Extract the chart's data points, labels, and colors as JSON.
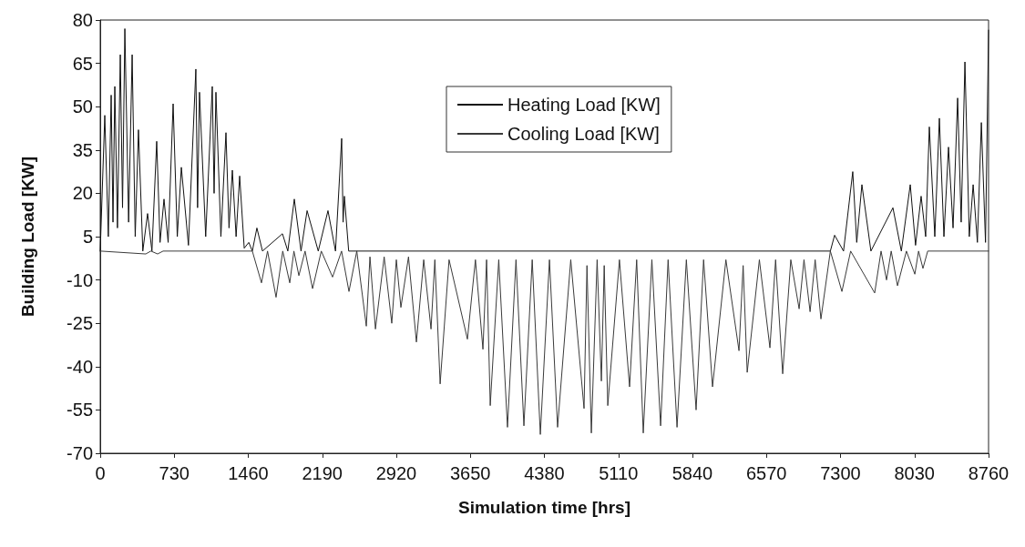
{
  "chart_data": {
    "type": "line",
    "xlabel": "Simulation time [hrs]",
    "ylabel": "Building Load [KW]",
    "xlim": [
      0,
      8760
    ],
    "xticks": [
      0,
      730,
      1460,
      2190,
      2920,
      3650,
      4380,
      5110,
      5840,
      6570,
      7300,
      8030,
      8760
    ],
    "ylim": [
      -70,
      80
    ],
    "yticks": [
      -70,
      -55,
      -40,
      -25,
      -10,
      5,
      20,
      35,
      50,
      65,
      80
    ],
    "grid": false,
    "legend": "top",
    "marker": "none",
    "line_style": "solid",
    "series": [
      {
        "name": "Heating Load [KW]",
        "color": "#111111",
        "x": [
          0,
          45,
          80,
          108,
          126,
          144,
          170,
          198,
          220,
          243,
          280,
          315,
          345,
          377,
          420,
          467,
          510,
          557,
          590,
          629,
          670,
          719,
          760,
          800,
          870,
          943,
          960,
          979,
          1040,
          1105,
          1123,
          1141,
          1190,
          1240,
          1270,
          1303,
          1340,
          1375,
          1420,
          1465,
          1500,
          1545,
          1600,
          1797,
          1850,
          1914,
          1980,
          2040,
          2150,
          2246,
          2320,
          2381,
          2395,
          2408,
          2450,
          7200,
          7242,
          7330,
          7421,
          7460,
          7511,
          7600,
          7817,
          7900,
          7988,
          8040,
          8095,
          8140,
          8176,
          8230,
          8275,
          8320,
          8365,
          8410,
          8455,
          8490,
          8527,
          8570,
          8608,
          8650,
          8689,
          8730,
          8760
        ],
        "values": [
          0,
          47,
          5,
          54,
          10,
          57,
          8,
          68,
          15,
          77,
          10,
          68,
          5,
          42,
          0,
          13,
          0,
          38,
          3,
          18,
          3,
          51,
          5,
          29,
          2,
          63,
          15,
          55,
          5,
          57,
          20,
          55,
          5,
          41,
          8,
          28,
          5,
          26,
          1,
          3,
          0,
          8,
          0,
          6,
          0,
          18,
          0,
          14,
          0,
          14,
          0,
          39,
          10,
          19,
          0,
          0,
          5.5,
          0,
          27.5,
          3,
          23,
          0,
          15,
          0,
          23,
          2,
          19,
          5,
          43,
          5,
          46,
          5,
          36,
          8,
          53,
          10,
          65.5,
          5,
          23,
          3,
          44.5,
          3,
          76.5
        ]
      },
      {
        "name": "Cooling Load [KW]",
        "color": "#3a3a3a",
        "x": [
          0,
          449,
          500,
          566,
          620,
          1500,
          1590,
          1650,
          1734,
          1800,
          1869,
          1910,
          1959,
          2020,
          2094,
          2180,
          2291,
          2380,
          2453,
          2530,
          2624,
          2660,
          2714,
          2800,
          2875,
          2920,
          2965,
          3040,
          3118,
          3190,
          3262,
          3300,
          3352,
          3440,
          3621,
          3700,
          3774,
          3810,
          3846,
          3930,
          4016,
          4100,
          4178,
          4260,
          4340,
          4430,
          4510,
          4640,
          4771,
          4800,
          4843,
          4900,
          4942,
          4970,
          5005,
          5120,
          5220,
          5290,
          5355,
          5440,
          5526,
          5600,
          5688,
          5780,
          5876,
          5950,
          6038,
          6170,
          6299,
          6340,
          6380,
          6500,
          6604,
          6660,
          6730,
          6810,
          6892,
          6940,
          7000,
          7050,
          7107,
          7200,
          7314,
          7400,
          7637,
          7700,
          7754,
          7800,
          7862,
          7950,
          8033,
          8070,
          8113,
          8160,
          8760
        ],
        "values": [
          0,
          -1,
          0,
          -1,
          0,
          0,
          -11,
          0,
          -16,
          0,
          -11,
          0,
          -8.5,
          0,
          -13,
          0,
          -9,
          0,
          -14,
          0,
          -26,
          -2,
          -27,
          -2,
          -25,
          -3,
          -19.5,
          -2,
          -31.5,
          -3,
          -27,
          -3,
          -46,
          -3,
          -30.5,
          -3,
          -34,
          -3,
          -53.5,
          -3,
          -61,
          -3,
          -60.5,
          -3,
          -63.5,
          -3,
          -61,
          -3,
          -54.5,
          -5,
          -63,
          -3,
          -45,
          -5,
          -53.5,
          -3,
          -47,
          -3,
          -63,
          -3,
          -60.5,
          -3,
          -61,
          -3,
          -55,
          -3,
          -47,
          -3,
          -34.5,
          -5,
          -42,
          -3,
          -33.5,
          -3,
          -42.5,
          -3,
          -20,
          -3,
          -21,
          -3,
          -23.5,
          0,
          -14,
          0,
          -14.5,
          0,
          -10,
          0,
          -12,
          0,
          -8,
          0,
          -6,
          0,
          0
        ]
      }
    ]
  }
}
